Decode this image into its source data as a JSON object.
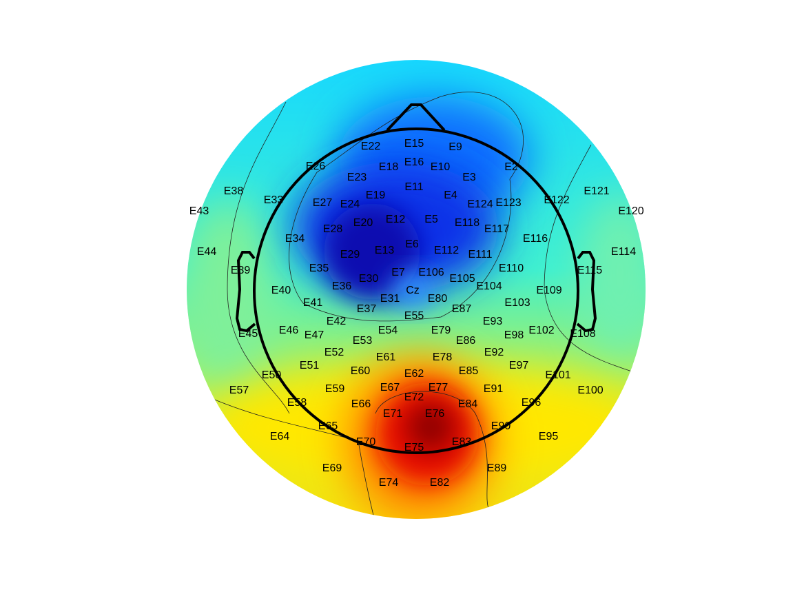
{
  "chart_data": {
    "type": "topoplot",
    "electrodes": [
      "E22",
      "E15",
      "E9",
      "E26",
      "E18",
      "E16",
      "E10",
      "E2",
      "E23",
      "E3",
      "E38",
      "E11",
      "E121",
      "E43",
      "E33",
      "E27",
      "E24",
      "E19",
      "E4",
      "E124",
      "E123",
      "E122",
      "E120",
      "E28",
      "E20",
      "E12",
      "E5",
      "E118",
      "E117",
      "E34",
      "E116",
      "E13",
      "E6",
      "E112",
      "E111",
      "E44",
      "E114",
      "E39",
      "E35",
      "E29",
      "E7",
      "E106",
      "E105",
      "E110",
      "E115",
      "E36",
      "E30",
      "E40",
      "E109",
      "E104",
      "E31",
      "Cz",
      "E80",
      "E41",
      "E103",
      "E37",
      "E87",
      "E55",
      "E42",
      "E93",
      "E45",
      "E46",
      "E47",
      "E54",
      "E79",
      "E53",
      "E86",
      "E98",
      "E102",
      "E108",
      "E52",
      "E61",
      "E78",
      "E92",
      "E51",
      "E97",
      "E60",
      "E62",
      "E85",
      "E50",
      "E101",
      "E57",
      "E59",
      "E67",
      "E77",
      "E91",
      "E100",
      "E72",
      "E58",
      "E66",
      "E84",
      "E96",
      "E71",
      "E76",
      "E65",
      "E90",
      "E64",
      "E95",
      "E70",
      "E83",
      "E75",
      "E69",
      "E89",
      "E74",
      "E82"
    ]
  }
}
